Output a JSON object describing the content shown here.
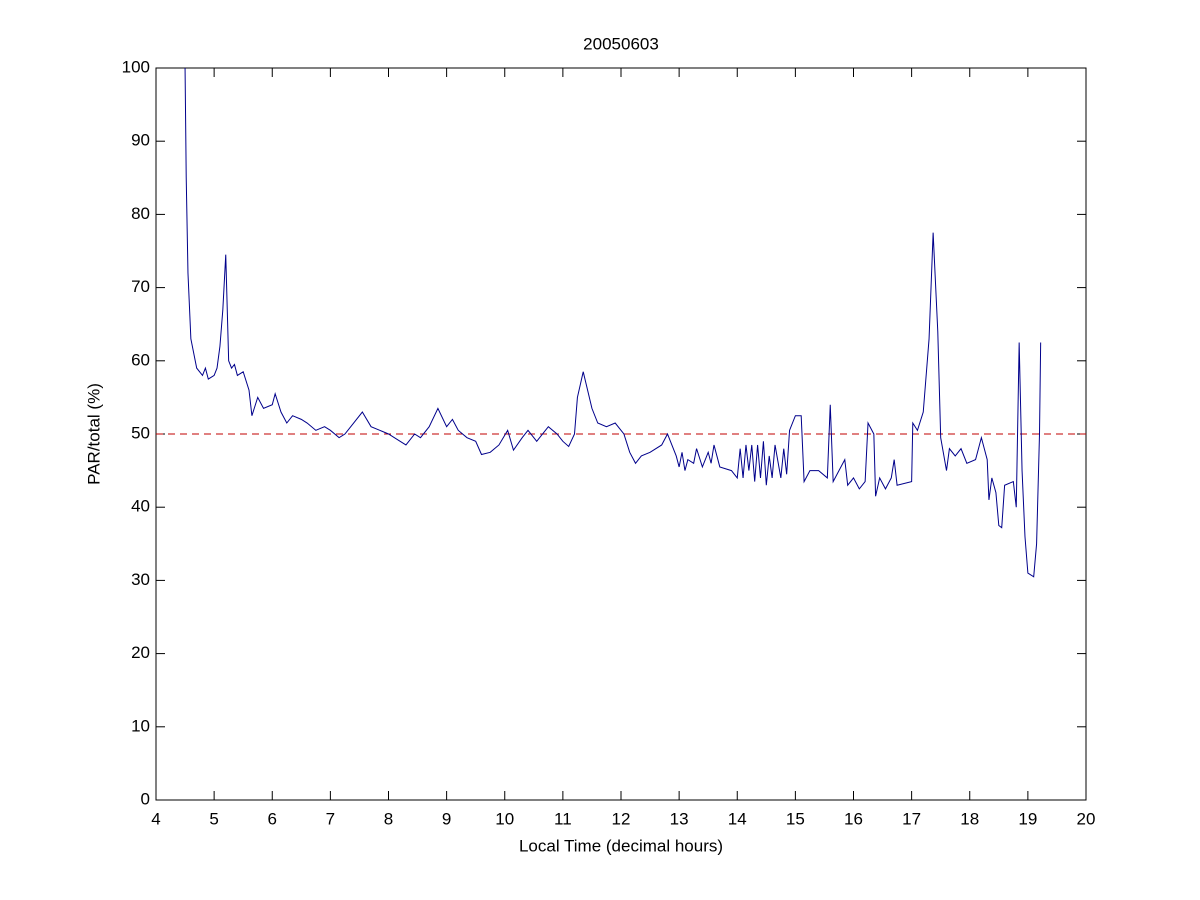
{
  "chart_data": {
    "type": "line",
    "title": "20050603",
    "xlabel": "Local Time (decimal hours)",
    "ylabel": "PAR/total (%)",
    "xlim": [
      4,
      20
    ],
    "ylim": [
      0,
      100
    ],
    "xticks": [
      4,
      5,
      6,
      7,
      8,
      9,
      10,
      11,
      12,
      13,
      14,
      15,
      16,
      17,
      18,
      19,
      20
    ],
    "yticks": [
      0,
      10,
      20,
      30,
      40,
      50,
      60,
      70,
      80,
      90,
      100
    ],
    "grid": false,
    "reference_line": {
      "value": 50,
      "color": "#c00000",
      "style": "dashed"
    },
    "series": [
      {
        "color": "#00008b",
        "x": [
          4.5,
          4.52,
          4.55,
          4.6,
          4.7,
          4.8,
          4.85,
          4.9,
          5.0,
          5.05,
          5.1,
          5.15,
          5.2,
          5.25,
          5.3,
          5.35,
          5.4,
          5.5,
          5.6,
          5.65,
          5.75,
          5.85,
          6.0,
          6.05,
          6.15,
          6.25,
          6.35,
          6.5,
          6.6,
          6.75,
          6.9,
          7.0,
          7.15,
          7.25,
          7.4,
          7.55,
          7.7,
          7.85,
          8.0,
          8.2,
          8.3,
          8.45,
          8.55,
          8.7,
          8.85,
          9.0,
          9.1,
          9.2,
          9.35,
          9.5,
          9.6,
          9.75,
          9.9,
          10.05,
          10.15,
          10.3,
          10.4,
          10.55,
          10.75,
          10.9,
          11.0,
          11.1,
          11.2,
          11.25,
          11.35,
          11.5,
          11.6,
          11.75,
          11.9,
          12.05,
          12.15,
          12.25,
          12.35,
          12.5,
          12.7,
          12.8,
          12.95,
          13.0,
          13.05,
          13.1,
          13.15,
          13.25,
          13.3,
          13.4,
          13.5,
          13.55,
          13.6,
          13.7,
          13.9,
          14.0,
          14.05,
          14.1,
          14.15,
          14.2,
          14.25,
          14.3,
          14.35,
          14.4,
          14.45,
          14.5,
          14.55,
          14.6,
          14.65,
          14.75,
          14.8,
          14.85,
          14.9,
          15.0,
          15.1,
          15.15,
          15.25,
          15.4,
          15.55,
          15.6,
          15.65,
          15.75,
          15.85,
          15.9,
          16.0,
          16.1,
          16.2,
          16.25,
          16.35,
          16.38,
          16.45,
          16.55,
          16.65,
          16.7,
          16.75,
          17.0,
          17.02,
          17.1,
          17.2,
          17.3,
          17.37,
          17.45,
          17.5,
          17.6,
          17.65,
          17.75,
          17.85,
          17.95,
          18.1,
          18.2,
          18.3,
          18.33,
          18.38,
          18.45,
          18.5,
          18.55,
          18.6,
          18.75,
          18.8,
          18.85,
          18.9,
          18.95,
          19.0,
          19.1,
          19.15,
          19.2,
          19.22
        ],
        "values": [
          100,
          85,
          72,
          63,
          59,
          58,
          59,
          57.5,
          58,
          59,
          62,
          67,
          74.5,
          60,
          59,
          59.5,
          58,
          58.5,
          56,
          52.5,
          55,
          53.5,
          54,
          55.5,
          53,
          51.5,
          52.5,
          52,
          51.5,
          50.5,
          51,
          50.5,
          49.5,
          50,
          51.5,
          53,
          51,
          50.5,
          50,
          49,
          48.5,
          50,
          49.5,
          51,
          53.5,
          51,
          52,
          50.5,
          49.5,
          49,
          47.2,
          47.5,
          48.5,
          50.5,
          47.8,
          49.5,
          50.5,
          49,
          51,
          50,
          49,
          48.3,
          50,
          55,
          58.5,
          53.5,
          51.5,
          51,
          51.5,
          50,
          47.5,
          46,
          47,
          47.5,
          48.5,
          50,
          47,
          45.5,
          47.5,
          45,
          46.5,
          46,
          48,
          45.5,
          47.5,
          46,
          48.5,
          45.5,
          45,
          44,
          48,
          44,
          48.5,
          45,
          48.5,
          43.5,
          48.5,
          44,
          49,
          43,
          47,
          44,
          48.5,
          44,
          48,
          44.5,
          50.5,
          52.5,
          52.5,
          43.5,
          45,
          45,
          44,
          54,
          43.5,
          45,
          46.5,
          43,
          44,
          42.5,
          43.5,
          51.5,
          50,
          41.5,
          44,
          42.5,
          44,
          46.5,
          43,
          43.5,
          51.5,
          50.5,
          53,
          63,
          77.5,
          64,
          49.5,
          45,
          48,
          47,
          48,
          46,
          46.5,
          49.5,
          46.5,
          41,
          44,
          42,
          37.5,
          37.2,
          43,
          43.5,
          40,
          62.5,
          45,
          36,
          31,
          30.5,
          35,
          50,
          62.5
        ]
      }
    ]
  }
}
